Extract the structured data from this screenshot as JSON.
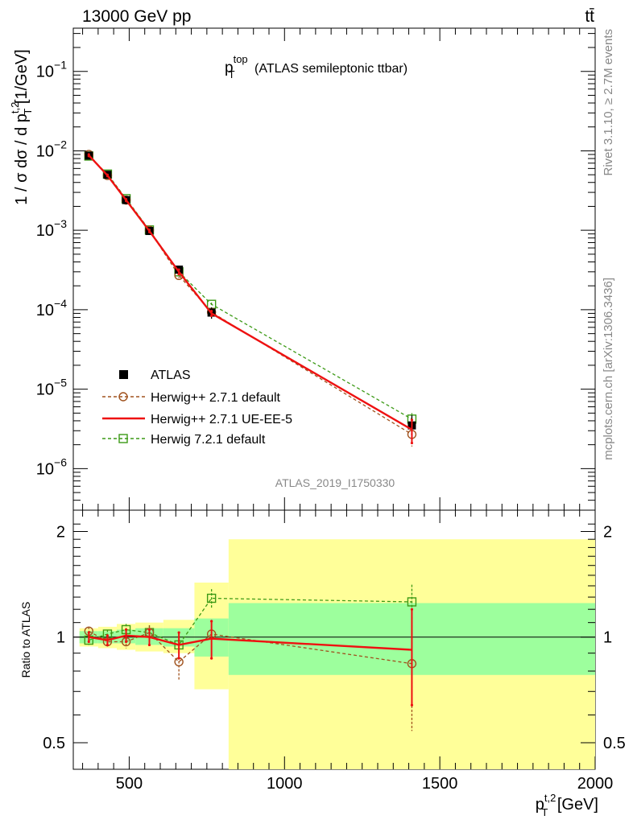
{
  "header": {
    "energy": "13000 GeV pp",
    "process": "tt̄"
  },
  "plot_title": {
    "main": "p",
    "sup": "top",
    "sub": "T",
    "rest": " (ATLAS semileptonic ttbar)"
  },
  "side_labels": {
    "rivet": "Rivet 3.1.10, ≥ 2.7M events",
    "mcplots": "mcplots.cern.ch [arXiv:1306.3436]"
  },
  "analysis_id": "ATLAS_2019_I1750330",
  "y_label_main": "1 / σ dσ / d p",
  "y_label_main_sup": "t,2",
  "y_label_main_sub": "T",
  "y_label_main_unit": " [1/GeV]",
  "y_label_ratio": "Ratio to ATLAS",
  "x_label": {
    "main": "p",
    "sup": "t,2",
    "sub": "T",
    "unit": " [GeV]"
  },
  "legend": [
    {
      "label": "ATLAS"
    },
    {
      "label": "Herwig++ 2.7.1 default"
    },
    {
      "label": "Herwig++ 2.7.1 UE-EE-5"
    },
    {
      "label": "Herwig 7.2.1 default"
    }
  ],
  "colors": {
    "data": "#000000",
    "h271": "#a0521e",
    "ueee5": "#ee1111",
    "h721": "#3c9a16",
    "band_inner": "#9dff9d",
    "band_outer": "#ffff99"
  },
  "chart_data": [
    {
      "type": "line",
      "panel": "main",
      "yscale": "log",
      "xlim": [
        320,
        2000
      ],
      "ylim": [
        3e-07,
        0.35
      ],
      "y_ticks": [
        {
          "base": "10",
          "exp": "−1",
          "v": 0.1
        },
        {
          "base": "10",
          "exp": "−2",
          "v": 0.01
        },
        {
          "base": "10",
          "exp": "−3",
          "v": 0.001
        },
        {
          "base": "10",
          "exp": "−4",
          "v": 0.0001
        },
        {
          "base": "10",
          "exp": "−5",
          "v": 1e-05
        },
        {
          "base": "10",
          "exp": "−6",
          "v": 1e-06
        }
      ],
      "bins": [
        [
          340,
          400
        ],
        [
          400,
          460
        ],
        [
          460,
          520
        ],
        [
          520,
          610
        ],
        [
          610,
          710
        ],
        [
          710,
          820
        ],
        [
          820,
          2000
        ]
      ],
      "x": [
        370,
        430,
        490,
        565,
        660,
        765,
        1410
      ],
      "series": [
        {
          "name": "ATLAS",
          "values": [
            0.0087,
            0.005,
            0.0024,
            0.00098,
            0.00032,
            9.2e-05,
            3.5e-06
          ],
          "err": [
            0.0003,
            0.0002,
            0.0001,
            5e-05,
            3e-05,
            1.5e-05,
            1.2e-06
          ]
        },
        {
          "name": "Herwig++ 2.7.1 default",
          "values": [
            0.009,
            0.0049,
            0.0024,
            0.001,
            0.00027,
            9.3e-05,
            2.7e-06
          ],
          "err": [
            0.0002,
            0.0001,
            6e-05,
            3e-05,
            2e-05,
            6e-06,
            8e-07
          ]
        },
        {
          "name": "Herwig++ 2.7.1 UE-EE-5",
          "values": [
            0.0088,
            0.0049,
            0.0024,
            0.00098,
            0.0003,
            9e-05,
            3.1e-06
          ],
          "err": [
            0.0002,
            0.0001,
            6e-05,
            3e-05,
            2e-05,
            6e-06,
            1e-06
          ]
        },
        {
          "name": "Herwig 7.2.1 default",
          "values": [
            0.0086,
            0.0051,
            0.0025,
            0.00101,
            0.0003,
            0.000117,
            4.2e-06
          ],
          "err": [
            0.0002,
            0.0001,
            6e-05,
            3e-05,
            2e-05,
            6e-06,
            8e-07
          ]
        }
      ]
    },
    {
      "type": "line",
      "panel": "ratio",
      "yscale": "log",
      "xlim": [
        320,
        2000
      ],
      "ylim": [
        0.42,
        2.3
      ],
      "y_ticks": [
        0.5,
        1,
        2
      ],
      "x_ticks": [
        500,
        1000,
        1500,
        2000
      ],
      "bins": [
        [
          340,
          400
        ],
        [
          400,
          460
        ],
        [
          460,
          520
        ],
        [
          520,
          610
        ],
        [
          610,
          710
        ],
        [
          710,
          820
        ],
        [
          820,
          2000
        ]
      ],
      "x": [
        370,
        430,
        490,
        565,
        660,
        765,
        1410
      ],
      "band_inner": [
        [
          0.96,
          1.04
        ],
        [
          0.96,
          1.04
        ],
        [
          0.96,
          1.05
        ],
        [
          0.95,
          1.06
        ],
        [
          0.94,
          1.06
        ],
        [
          0.88,
          1.13
        ],
        [
          0.78,
          1.25
        ]
      ],
      "band_outer": [
        [
          0.94,
          1.06
        ],
        [
          0.93,
          1.07
        ],
        [
          0.92,
          1.09
        ],
        [
          0.91,
          1.1
        ],
        [
          0.9,
          1.12
        ],
        [
          0.71,
          1.43
        ],
        [
          0.41,
          1.9
        ]
      ],
      "series": [
        {
          "name": "Herwig++ 2.7.1 default",
          "values": [
            1.04,
            0.97,
            0.97,
            1.03,
            0.85,
            1.02,
            0.84
          ],
          "err": [
            0.03,
            0.03,
            0.04,
            0.05,
            0.1,
            0.1,
            0.3
          ]
        },
        {
          "name": "Herwig++ 2.7.1 UE-EE-5",
          "values": [
            1.0,
            0.98,
            1.01,
            1.0,
            0.95,
            0.99,
            0.92
          ],
          "err": [
            0.03,
            0.03,
            0.04,
            0.05,
            0.08,
            0.12,
            0.28
          ]
        },
        {
          "name": "Herwig 7.2.1 default",
          "values": [
            0.98,
            1.02,
            1.05,
            1.03,
            0.95,
            1.29,
            1.26
          ],
          "err": [
            0.03,
            0.03,
            0.04,
            0.05,
            0.08,
            0.08,
            0.15
          ]
        }
      ]
    }
  ]
}
